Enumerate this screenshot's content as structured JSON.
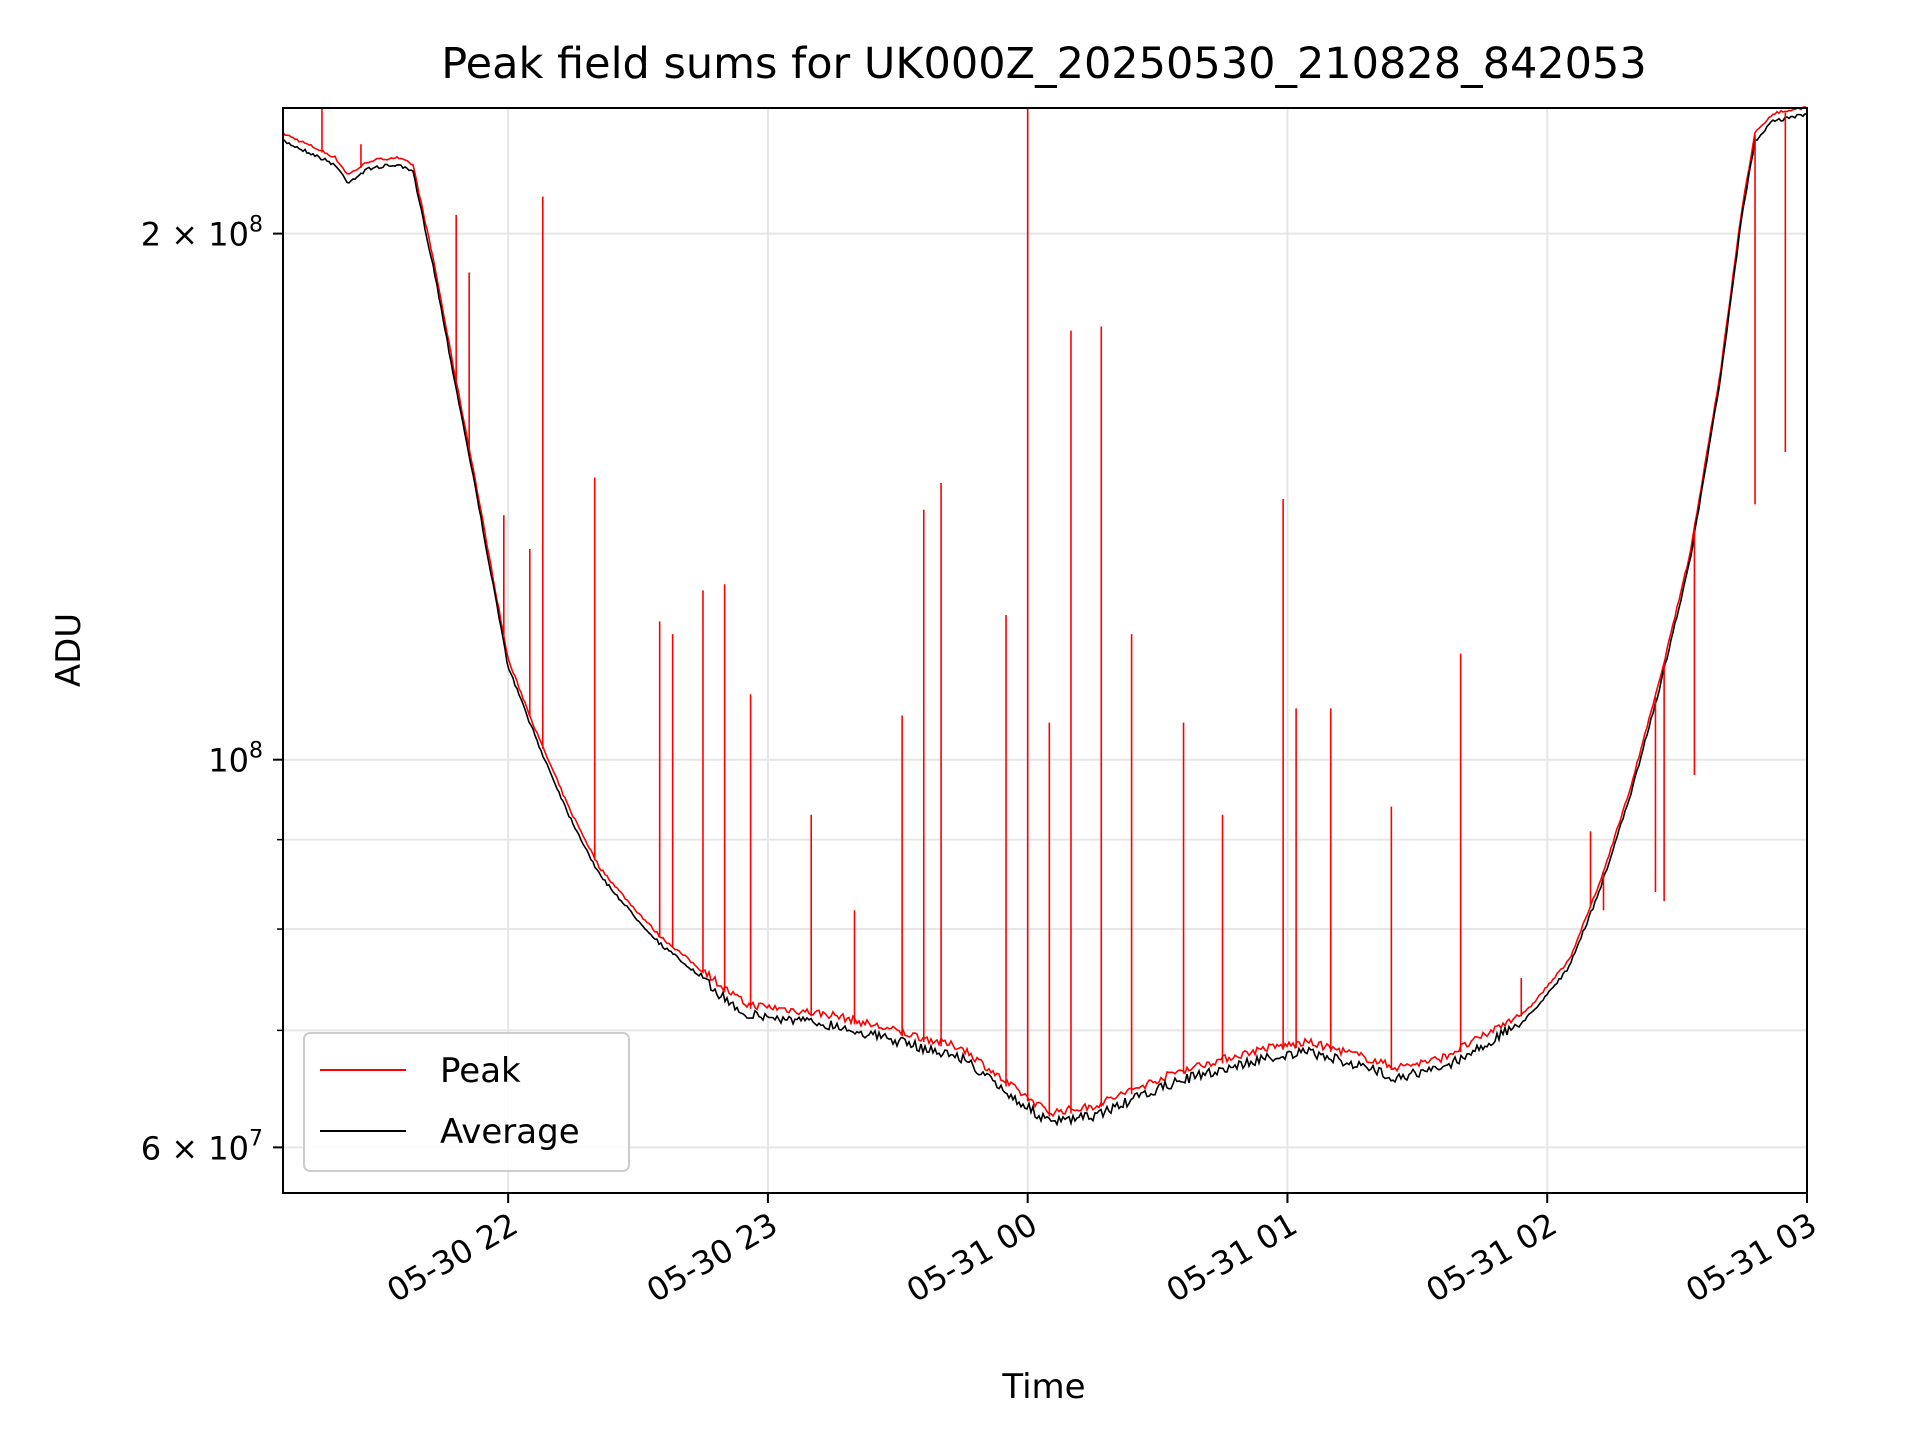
{
  "chart_data": {
    "type": "line",
    "title": "Peak field sums for UK000Z_20250530_210828_842053",
    "xlabel": "Time",
    "ylabel": "ADU",
    "y_scale": "log",
    "grid": true,
    "legend_position": "lower-left",
    "xlim": [
      "2025-05-30 21:08",
      "2025-05-31 03:00"
    ],
    "ylim": [
      56500000,
      236000000
    ],
    "x_ticks": [
      {
        "value": "2025-05-30 22:00",
        "label": "05-30 22"
      },
      {
        "value": "2025-05-30 23:00",
        "label": "05-30 23"
      },
      {
        "value": "2025-05-31 00:00",
        "label": "05-31 00"
      },
      {
        "value": "2025-05-31 01:00",
        "label": "05-31 01"
      },
      {
        "value": "2025-05-31 02:00",
        "label": "05-31 02"
      },
      {
        "value": "2025-05-31 03:00",
        "label": "05-31 03"
      }
    ],
    "y_ticks_major": [
      {
        "value": 200000000,
        "base": "2 × 10",
        "exp": "8"
      },
      {
        "value": 100000000,
        "base": "10",
        "exp": "8"
      },
      {
        "value": 60000000,
        "base": "6 × 10",
        "exp": "7"
      }
    ],
    "y_ticks_minor": [
      70000000,
      80000000,
      90000000
    ],
    "series": [
      {
        "name": "Average",
        "color": "#000000",
        "points": [
          [
            "2025-05-30 21:08",
            226000000
          ],
          [
            "2025-05-30 21:15",
            222000000
          ],
          [
            "2025-05-30 21:20",
            219000000
          ],
          [
            "2025-05-30 21:23",
            214000000
          ],
          [
            "2025-05-30 21:28",
            218000000
          ],
          [
            "2025-05-30 21:34",
            219000000
          ],
          [
            "2025-05-30 21:38",
            217000000
          ],
          [
            "2025-05-30 21:43",
            190000000
          ],
          [
            "2025-05-30 21:47",
            168000000
          ],
          [
            "2025-05-30 21:52",
            145000000
          ],
          [
            "2025-05-30 21:57",
            124000000
          ],
          [
            "2025-05-30 22:00",
            113000000
          ],
          [
            "2025-05-30 22:07",
            102000000
          ],
          [
            "2025-05-30 22:14",
            93000000
          ],
          [
            "2025-05-30 22:21",
            86000000
          ],
          [
            "2025-05-30 22:28",
            82000000
          ],
          [
            "2025-05-30 22:35",
            78500000
          ],
          [
            "2025-05-30 22:42",
            76000000
          ],
          [
            "2025-05-30 22:50",
            73000000
          ],
          [
            "2025-05-30 22:55",
            71500000
          ],
          [
            "2025-05-30 23:05",
            71000000
          ],
          [
            "2025-05-30 23:15",
            70500000
          ],
          [
            "2025-05-30 23:25",
            69500000
          ],
          [
            "2025-05-30 23:35",
            68500000
          ],
          [
            "2025-05-30 23:45",
            67500000
          ],
          [
            "2025-05-30 23:55",
            64500000
          ],
          [
            "2025-05-31 00:05",
            62000000
          ],
          [
            "2025-05-31 00:15",
            62500000
          ],
          [
            "2025-05-31 00:25",
            64000000
          ],
          [
            "2025-05-31 00:35",
            65500000
          ],
          [
            "2025-05-31 00:45",
            66500000
          ],
          [
            "2025-05-31 00:55",
            67500000
          ],
          [
            "2025-05-31 01:05",
            68000000
          ],
          [
            "2025-05-31 01:15",
            67000000
          ],
          [
            "2025-05-31 01:25",
            65800000
          ],
          [
            "2025-05-31 01:35",
            66500000
          ],
          [
            "2025-05-31 01:45",
            68500000
          ],
          [
            "2025-05-31 01:55",
            71000000
          ],
          [
            "2025-05-31 02:05",
            76000000
          ],
          [
            "2025-05-31 02:12",
            84000000
          ],
          [
            "2025-05-31 02:19",
            95000000
          ],
          [
            "2025-05-31 02:26",
            110000000
          ],
          [
            "2025-05-31 02:33",
            130000000
          ],
          [
            "2025-05-31 02:40",
            165000000
          ],
          [
            "2025-05-31 02:45",
            205000000
          ],
          [
            "2025-05-31 02:48",
            226000000
          ],
          [
            "2025-05-31 02:52",
            232000000
          ],
          [
            "2025-05-31 03:00",
            234000000
          ]
        ]
      },
      {
        "name": "Peak",
        "color": "#ff0000",
        "spikes": [
          [
            "2025-05-30 21:17",
            236000000
          ],
          [
            "2025-05-30 21:26",
            225000000
          ],
          [
            "2025-05-30 21:48",
            205000000
          ],
          [
            "2025-05-30 21:51",
            190000000
          ],
          [
            "2025-05-30 21:59",
            138000000
          ],
          [
            "2025-05-30 22:05",
            132000000
          ],
          [
            "2025-05-30 22:08",
            210000000
          ],
          [
            "2025-05-30 22:20",
            145000000
          ],
          [
            "2025-05-30 22:35",
            120000000
          ],
          [
            "2025-05-30 22:38",
            118000000
          ],
          [
            "2025-05-30 22:45",
            125000000
          ],
          [
            "2025-05-30 22:50",
            126000000
          ],
          [
            "2025-05-30 22:56",
            109000000
          ],
          [
            "2025-05-30 23:10",
            93000000
          ],
          [
            "2025-05-30 23:20",
            82000000
          ],
          [
            "2025-05-30 23:31",
            106000000
          ],
          [
            "2025-05-30 23:36",
            139000000
          ],
          [
            "2025-05-30 23:40",
            144000000
          ],
          [
            "2025-05-30 23:55",
            121000000
          ],
          [
            "2025-05-31 00:00",
            236000000
          ],
          [
            "2025-05-31 00:05",
            105000000
          ],
          [
            "2025-05-31 00:10",
            176000000
          ],
          [
            "2025-05-31 00:17",
            177000000
          ],
          [
            "2025-05-31 00:24",
            118000000
          ],
          [
            "2025-05-31 00:36",
            105000000
          ],
          [
            "2025-05-31 00:45",
            93000000
          ],
          [
            "2025-05-31 00:59",
            141000000
          ],
          [
            "2025-05-31 01:02",
            107000000
          ],
          [
            "2025-05-31 01:10",
            107000000
          ],
          [
            "2025-05-31 01:24",
            94000000
          ],
          [
            "2025-05-31 01:40",
            115000000
          ],
          [
            "2025-05-31 01:54",
            75000000
          ],
          [
            "2025-05-31 02:10",
            91000000
          ],
          [
            "2025-05-31 02:13",
            82000000
          ],
          [
            "2025-05-31 02:25",
            84000000
          ],
          [
            "2025-05-31 02:27",
            83000000
          ],
          [
            "2025-05-31 02:34",
            98000000
          ],
          [
            "2025-05-31 02:48",
            140000000
          ],
          [
            "2025-05-31 02:55",
            150000000
          ]
        ]
      }
    ]
  }
}
